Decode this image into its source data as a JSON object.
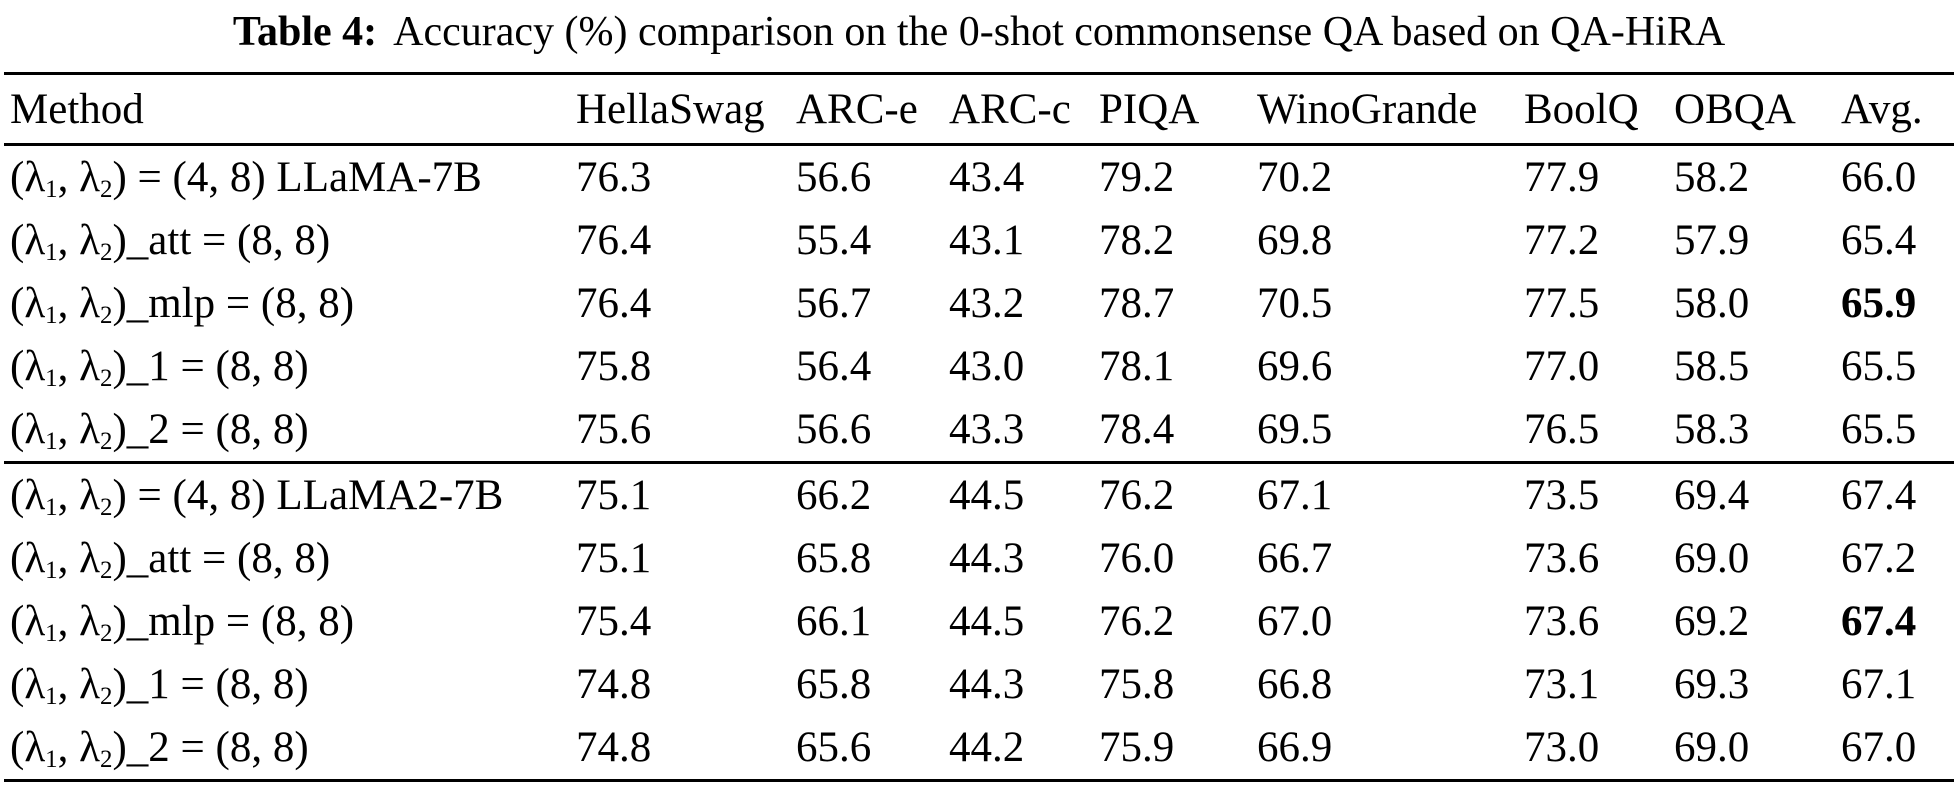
{
  "title": {
    "label": "Table 4:",
    "caption": "Accuracy (%) comparison on the 0-shot commonsense QA based on QA-HiRA"
  },
  "table": {
    "columns": [
      "Method",
      "HellaSwag",
      "ARC-e",
      "ARC-c",
      "PIQA",
      "WinoGrande",
      "BoolQ",
      "OBQA",
      "Avg."
    ],
    "groups": [
      {
        "rows": [
          {
            "method": "(λ₁, λ₂) = (4, 8) LLaMA-7B",
            "values": [
              "76.3",
              "56.6",
              "43.4",
              "79.2",
              "70.2",
              "77.9",
              "58.2",
              "66.0"
            ],
            "bold_indices": []
          },
          {
            "method": "(λ₁, λ₂)_att = (8, 8)",
            "values": [
              "76.4",
              "55.4",
              "43.1",
              "78.2",
              "69.8",
              "77.2",
              "57.9",
              "65.4"
            ],
            "bold_indices": []
          },
          {
            "method": "(λ₁, λ₂)_mlp = (8, 8)",
            "values": [
              "76.4",
              "56.7",
              "43.2",
              "78.7",
              "70.5",
              "77.5",
              "58.0",
              "65.9"
            ],
            "bold_indices": [
              7
            ]
          },
          {
            "method": "(λ₁, λ₂)_1 = (8, 8)",
            "values": [
              "75.8",
              "56.4",
              "43.0",
              "78.1",
              "69.6",
              "77.0",
              "58.5",
              "65.5"
            ],
            "bold_indices": []
          },
          {
            "method": "(λ₁, λ₂)_2 = (8, 8)",
            "values": [
              "75.6",
              "56.6",
              "43.3",
              "78.4",
              "69.5",
              "76.5",
              "58.3",
              "65.5"
            ],
            "bold_indices": []
          }
        ]
      },
      {
        "rows": [
          {
            "method": "(λ₁, λ₂) = (4, 8) LLaMA2-7B",
            "values": [
              "75.1",
              "66.2",
              "44.5",
              "76.2",
              "67.1",
              "73.5",
              "69.4",
              "67.4"
            ],
            "bold_indices": []
          },
          {
            "method": "(λ₁, λ₂)_att = (8, 8)",
            "values": [
              "75.1",
              "65.8",
              "44.3",
              "76.0",
              "66.7",
              "73.6",
              "69.0",
              "67.2"
            ],
            "bold_indices": []
          },
          {
            "method": "(λ₁, λ₂)_mlp = (8, 8)",
            "values": [
              "75.4",
              "66.1",
              "44.5",
              "76.2",
              "67.0",
              "73.6",
              "69.2",
              "67.4"
            ],
            "bold_indices": [
              7
            ]
          },
          {
            "method": "(λ₁, λ₂)_1 = (8, 8)",
            "values": [
              "74.8",
              "65.8",
              "44.3",
              "75.8",
              "66.8",
              "73.1",
              "69.3",
              "67.1"
            ],
            "bold_indices": []
          },
          {
            "method": "(λ₁, λ₂)_2 = (8, 8)",
            "values": [
              "74.8",
              "65.6",
              "44.2",
              "75.9",
              "66.9",
              "73.0",
              "69.0",
              "67.0"
            ],
            "bold_indices": []
          }
        ]
      }
    ]
  }
}
